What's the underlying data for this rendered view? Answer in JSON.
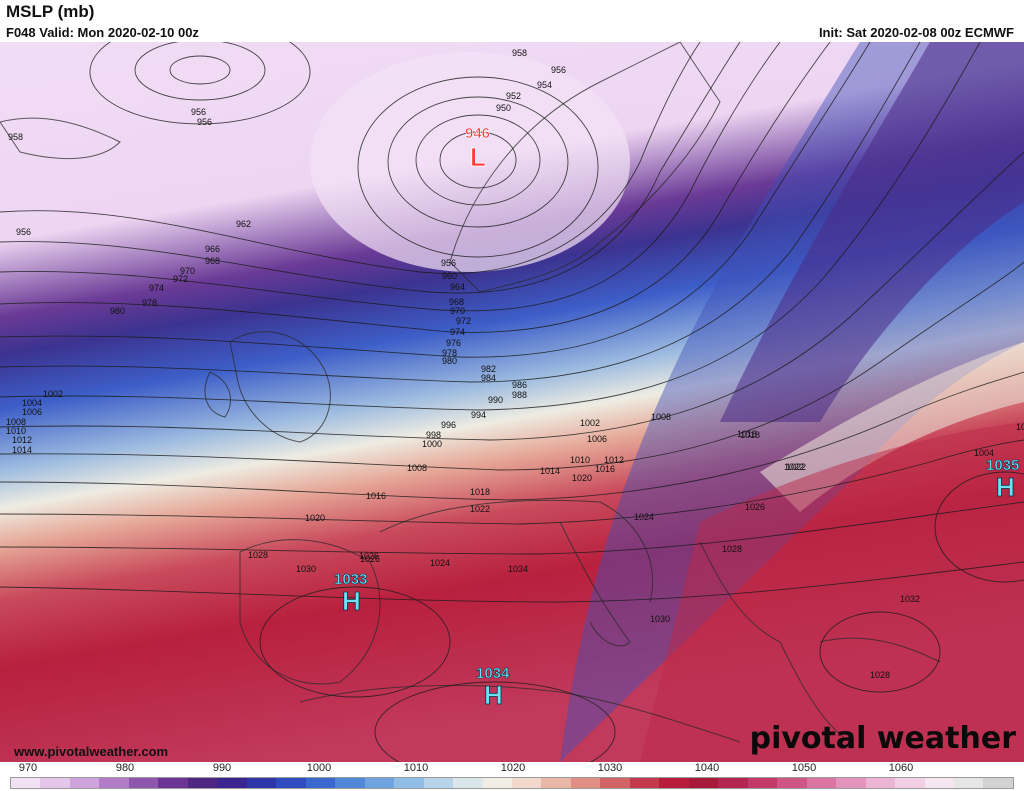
{
  "header": {
    "title": "MSLP (mb)",
    "valid": "F048 Valid: Mon 2020-02-10 00z",
    "init": "Init: Sat 2020-02-08 00z ECMWF"
  },
  "footer": {
    "url": "www.pivotalweather.com",
    "brand": "pivotal weather"
  },
  "lows": [
    {
      "value": "946",
      "letter": "L"
    }
  ],
  "highs": [
    {
      "value": "1033",
      "letter": "H"
    },
    {
      "value": "1034",
      "letter": "H"
    },
    {
      "value": "1035",
      "letter": "H"
    }
  ],
  "contour_labels": [
    "958",
    "956",
    "954",
    "952",
    "950",
    "956",
    "956",
    "958",
    "956",
    "962",
    "966",
    "968",
    "970",
    "972",
    "974",
    "978",
    "980",
    "956",
    "960",
    "964",
    "968",
    "970",
    "972",
    "974",
    "976",
    "978",
    "980",
    "982",
    "984",
    "986",
    "988",
    "990",
    "994",
    "996",
    "998",
    "1000",
    "1002",
    "1004",
    "1006",
    "1008",
    "1010",
    "1012",
    "1014",
    "1008",
    "1016",
    "1018",
    "1020",
    "1022",
    "1024",
    "1026",
    "1028",
    "1030",
    "1032",
    "1034",
    "1004",
    "1002",
    "1006",
    "1008",
    "1010",
    "1012",
    "1014",
    "1016",
    "1018",
    "1020",
    "1022",
    "1024",
    "1026",
    "1028",
    "1030",
    "1032",
    "1028",
    "1026",
    "1022",
    "1018"
  ],
  "colorbar": {
    "ticks": [
      "970",
      "980",
      "990",
      "1000",
      "1010",
      "1020",
      "1030",
      "1040",
      "1050",
      "1060"
    ],
    "colors": [
      "#f2e1f5",
      "#e4c6ea",
      "#cfa4dc",
      "#b37cc6",
      "#8f56ad",
      "#6c3495",
      "#4f2680",
      "#3a2590",
      "#2e37a8",
      "#2f4cc0",
      "#3a68cf",
      "#5087d8",
      "#6ea3df",
      "#92bde6",
      "#b8d3ea",
      "#dbe6ea",
      "#f1eee6",
      "#f3d9cc",
      "#eab6a6",
      "#df8f84",
      "#d36466",
      "#c5394d",
      "#b81e3c",
      "#a81a3a",
      "#b52552",
      "#c23a6a",
      "#cf5585",
      "#da74a0",
      "#e394bb",
      "#ebb4d3",
      "#f1d0e6",
      "#f5e6f2",
      "#e6e6e6",
      "#d2d2d2"
    ]
  }
}
